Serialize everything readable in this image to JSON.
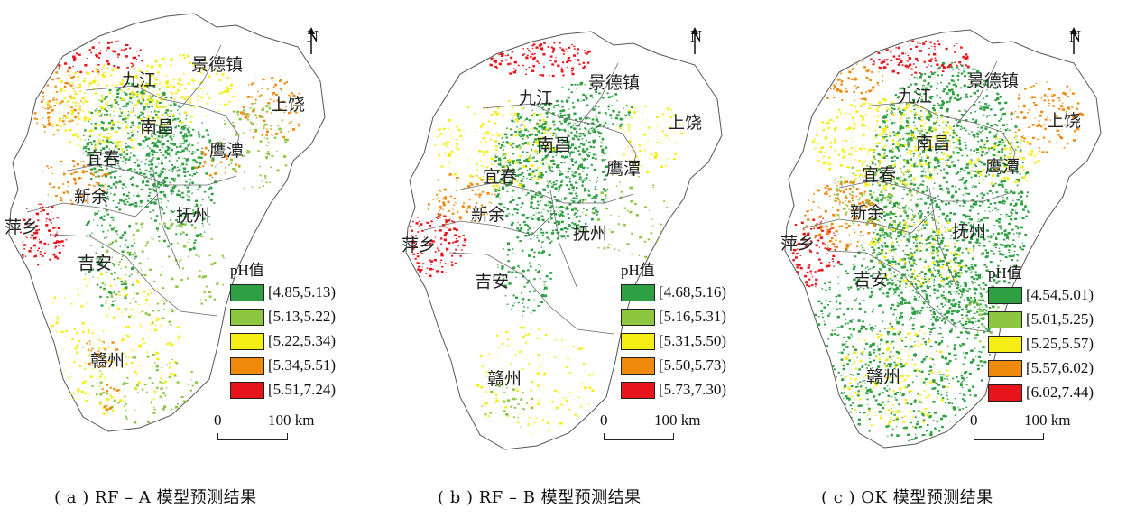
{
  "north_label": "N",
  "panels": [
    {
      "id": "a",
      "caption": "( a ) RF – A 模型预测结果",
      "legend_title": "pH值",
      "legend": [
        {
          "label": "[4.85,5.13)",
          "color": "#2ea043"
        },
        {
          "label": "[5.13,5.22)",
          "color": "#8dc63f"
        },
        {
          "label": "[5.22,5.34)",
          "color": "#f5ee15"
        },
        {
          "label": "[5.34,5.51)",
          "color": "#f08a0c"
        },
        {
          "label": "[5.51,7.24)",
          "color": "#e8141c"
        }
      ],
      "scale": {
        "zero": "0",
        "label": "100 km"
      }
    },
    {
      "id": "b",
      "caption": "( b ) RF – B 模型预测结果",
      "legend_title": "pH值",
      "legend": [
        {
          "label": "[4.68,5.16)",
          "color": "#2ea043"
        },
        {
          "label": "[5.16,5.31)",
          "color": "#8dc63f"
        },
        {
          "label": "[5.31,5.50)",
          "color": "#f5ee15"
        },
        {
          "label": "[5.50,5.73)",
          "color": "#f08a0c"
        },
        {
          "label": "[5.73,7.30)",
          "color": "#e8141c"
        }
      ],
      "scale": {
        "zero": "0",
        "label": "100 km"
      }
    },
    {
      "id": "c",
      "caption": "( c ) OK 模型预测结果",
      "legend_title": "pH值",
      "legend": [
        {
          "label": "[4.54,5.01)",
          "color": "#2ea043"
        },
        {
          "label": "[5.01,5.25)",
          "color": "#8dc63f"
        },
        {
          "label": "[5.25,5.57)",
          "color": "#f5ee15"
        },
        {
          "label": "[5.57,6.02)",
          "color": "#f08a0c"
        },
        {
          "label": "[6.02,7.44)",
          "color": "#e8141c"
        }
      ],
      "scale": {
        "zero": "0",
        "label": "100 km"
      }
    }
  ],
  "cities": {
    "jiujiang": "九江",
    "jingdezhen": "景德镇",
    "shangrao": "上饶",
    "nanchang": "南昌",
    "yingtan": "鹰潭",
    "yichun": "宜春",
    "xinyu": "新余",
    "fuzhou": "抚州",
    "pingxiang": "萍乡",
    "jian": "吉安",
    "ganzhou": "赣州"
  }
}
